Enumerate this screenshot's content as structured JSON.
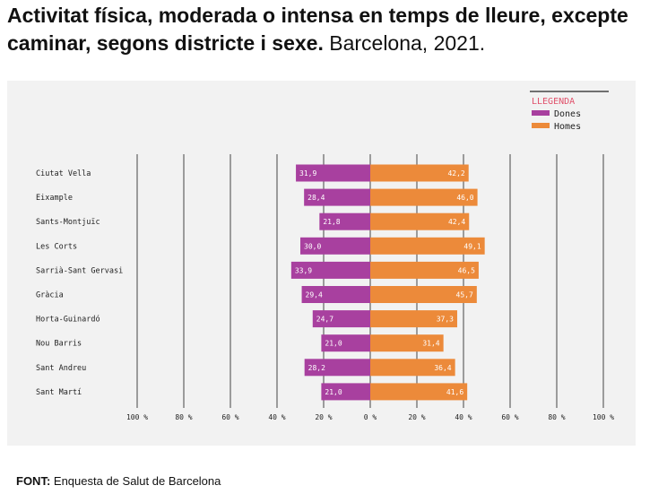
{
  "title": {
    "bold": "Activitat física, moderada o intensa en temps de lleure, excepte caminar, segons districte i sexe.",
    "normal": "Barcelona, 2021."
  },
  "legend": {
    "title": "LLEGENDA",
    "items": [
      "Dones",
      "Homes"
    ]
  },
  "source": {
    "label": "FONT:",
    "text": "Enquesta de Salut de Barcelona"
  },
  "colors": {
    "dones": "#a8409f",
    "homes": "#ec8a3a",
    "legend_title": "#e0506a",
    "grid": "#555555",
    "panel": "#f2f2f2"
  },
  "chart_data": {
    "type": "bar",
    "orientation": "horizontal-diverging",
    "categories": [
      "Ciutat Vella",
      "Eixample",
      "Sants-Montjuïc",
      "Les Corts",
      "Sarrià-Sant Gervasi",
      "Gràcia",
      "Horta-Guinardó",
      "Nou Barris",
      "Sant Andreu",
      "Sant Martí"
    ],
    "series": [
      {
        "name": "Dones",
        "side": "left",
        "values": [
          31.9,
          28.4,
          21.8,
          30.0,
          33.9,
          29.4,
          24.7,
          21.0,
          28.2,
          21.0
        ],
        "labels": [
          "31,9",
          "28,4",
          "21,8",
          "30,0",
          "33,9",
          "29,4",
          "24,7",
          "21,0",
          "28,2",
          "21,0"
        ]
      },
      {
        "name": "Homes",
        "side": "right",
        "values": [
          42.2,
          46.0,
          42.4,
          49.1,
          46.5,
          45.7,
          37.3,
          31.4,
          36.4,
          41.6
        ],
        "labels": [
          "42,2",
          "46,0",
          "42,4",
          "49,1",
          "46,5",
          "45,7",
          "37,3",
          "31,4",
          "36,4",
          "41,6"
        ]
      }
    ],
    "x_ticks": [
      -100,
      -80,
      -60,
      -40,
      -20,
      0,
      20,
      40,
      60,
      80,
      100
    ],
    "x_tick_labels": [
      "100 %",
      "80 %",
      "60 %",
      "40 %",
      "20 %",
      "0 %",
      "20 %",
      "40 %",
      "60 %",
      "80 %",
      "100 %"
    ],
    "xlim": [
      -100,
      100
    ],
    "grid": true,
    "legend_position": "top-right"
  }
}
